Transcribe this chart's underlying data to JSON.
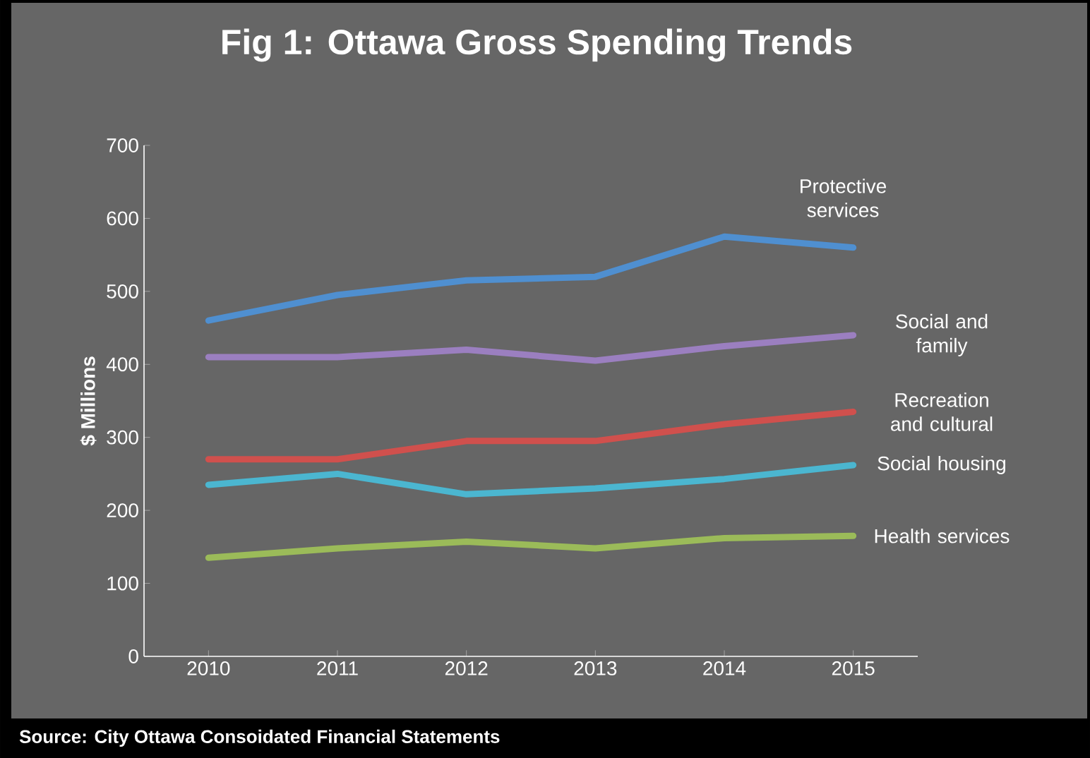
{
  "chart_data": {
    "type": "line",
    "title": "Fig 1: Ottawa Gross Spending Trends",
    "ylabel": "$ Millions",
    "categories": [
      "2010",
      "2011",
      "2012",
      "2013",
      "2014",
      "2015"
    ],
    "series": [
      {
        "name": "Protective services",
        "color": "#4f8fd0",
        "values": [
          460,
          495,
          515,
          520,
          575,
          560
        ]
      },
      {
        "name": "Social and family",
        "color": "#9b7fc0",
        "values": [
          410,
          410,
          420,
          405,
          425,
          440
        ]
      },
      {
        "name": "Recreation and cultural",
        "color": "#d0504d",
        "values": [
          270,
          270,
          295,
          295,
          318,
          335
        ]
      },
      {
        "name": "Social housing",
        "color": "#4bb6d0",
        "values": [
          235,
          250,
          222,
          230,
          243,
          262
        ]
      },
      {
        "name": "Health services",
        "color": "#9bbb59",
        "values": [
          135,
          148,
          157,
          148,
          162,
          165
        ]
      }
    ],
    "ylim": [
      0,
      700
    ],
    "yticks": [
      0,
      100,
      200,
      300,
      400,
      500,
      600,
      700
    ],
    "grid": false,
    "marker": "none",
    "line_style": "solid",
    "annotations": [
      "Source: City Ottawa Consoidated Financial Statements"
    ]
  }
}
